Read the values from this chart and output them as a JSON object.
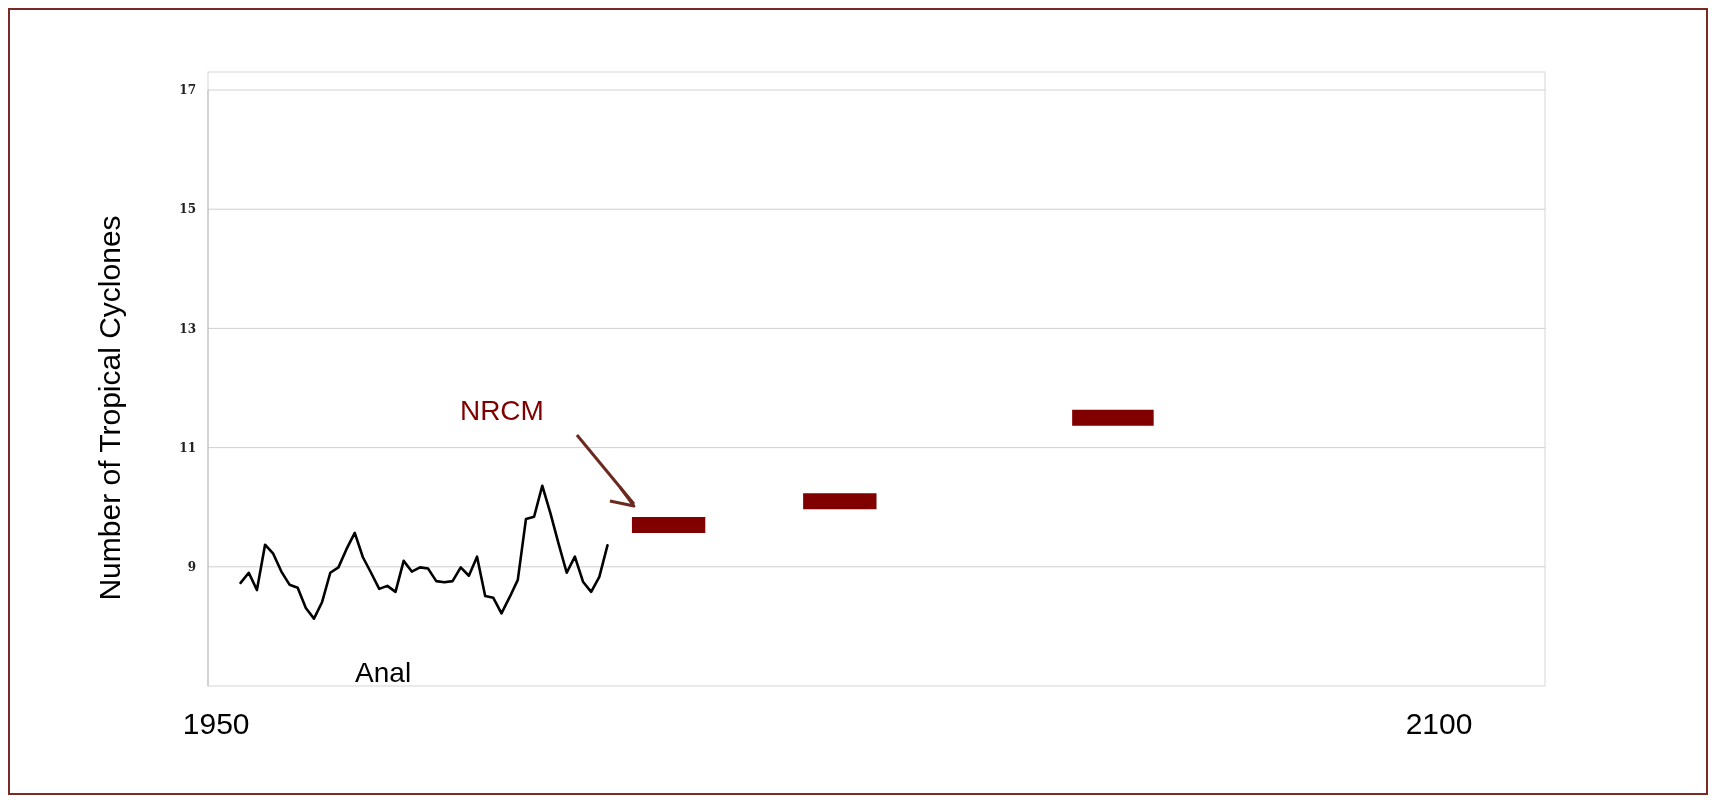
{
  "chart_data": {
    "type": "line",
    "ylabel": "Number of Tropical Cyclones",
    "xlim": [
      1949,
      2113
    ],
    "xticks": [
      1950,
      2100
    ],
    "ylim": [
      7,
      17
    ],
    "yticks": [
      9,
      11,
      13,
      15,
      17
    ],
    "grid": "y",
    "line_style": "solid",
    "series": [
      {
        "color": "#000000",
        "x": [
          1953,
          1954,
          1955,
          1956,
          1957,
          1958,
          1959,
          1960,
          1961,
          1962,
          1963,
          1964,
          1965,
          1966,
          1967,
          1968,
          1969,
          1970,
          1971,
          1972,
          1973,
          1974,
          1975,
          1976,
          1977,
          1978,
          1979,
          1980,
          1981,
          1982,
          1983,
          1984,
          1985,
          1986,
          1987,
          1988,
          1989,
          1990,
          1991,
          1992,
          1993,
          1994,
          1995,
          1996,
          1997,
          1998
        ],
        "values": [
          8.73,
          8.9,
          8.61,
          9.37,
          9.22,
          8.92,
          8.7,
          8.65,
          8.31,
          8.13,
          8.41,
          8.9,
          8.99,
          9.3,
          9.57,
          9.16,
          8.9,
          8.63,
          8.68,
          8.58,
          9.1,
          8.92,
          8.99,
          8.97,
          8.76,
          8.74,
          8.76,
          8.99,
          8.85,
          9.17,
          8.51,
          8.48,
          8.22,
          8.49,
          8.78,
          9.8,
          9.84,
          10.36,
          9.9,
          9.39,
          8.9,
          9.17,
          8.75,
          8.58,
          8.83,
          9.36
        ]
      },
      {
        "color": "#800000",
        "x": [
          2001,
          2010,
          2010.5,
          2022,
          2031,
          2031.5,
          2055,
          2065
        ],
        "values": [
          9.7,
          9.7,
          null,
          10.1,
          10.1,
          null,
          11.5,
          11.5
        ]
      }
    ],
    "annotations": [
      "NRCM",
      "Anal"
    ]
  }
}
